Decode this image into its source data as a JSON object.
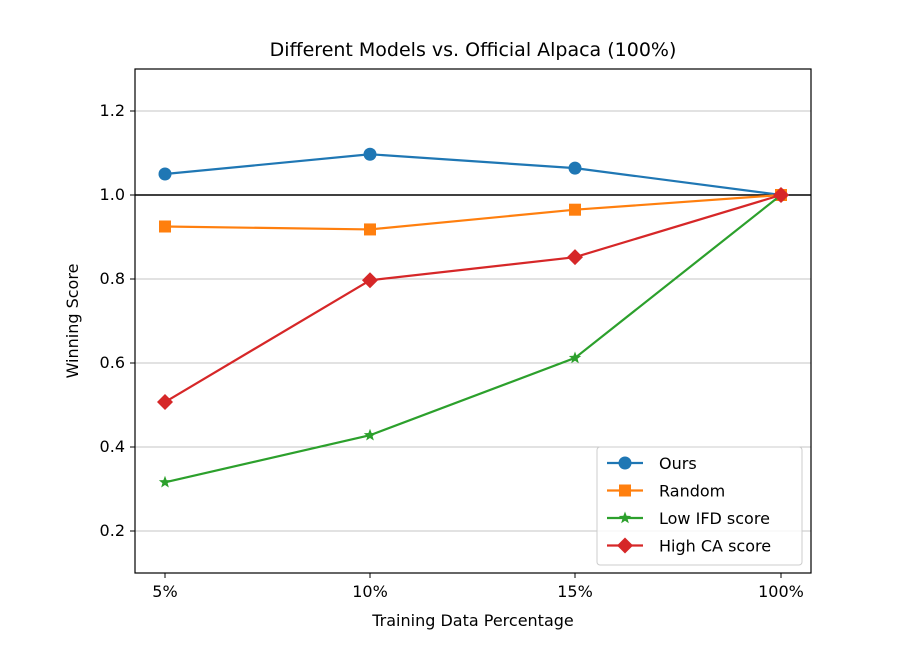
{
  "chart_data": {
    "type": "line",
    "title": "Different Models vs. Official Alpaca (100%)",
    "xlabel": "Training Data Percentage",
    "ylabel": "Winning Score",
    "categories": [
      "5%",
      "10%",
      "15%",
      "100%"
    ],
    "ylim": [
      0.1,
      1.3
    ],
    "yticks": [
      0.2,
      0.4,
      0.6,
      0.8,
      1.0,
      1.2
    ],
    "ytick_labels": [
      "0.2",
      "0.4",
      "0.6",
      "0.8",
      "1.0",
      "1.2"
    ],
    "reference_line": 1.0,
    "grid": "horizontal",
    "legend_position": "lower-right",
    "series": [
      {
        "name": "Ours",
        "values": [
          1.05,
          1.097,
          1.064,
          1.0
        ],
        "color": "#1f77b4",
        "marker": "circle"
      },
      {
        "name": "Random",
        "values": [
          0.925,
          0.918,
          0.965,
          1.0
        ],
        "color": "#ff7f0e",
        "marker": "square"
      },
      {
        "name": "Low IFD score",
        "values": [
          0.316,
          0.428,
          0.612,
          1.0
        ],
        "color": "#2ca02c",
        "marker": "star"
      },
      {
        "name": "High CA score",
        "values": [
          0.507,
          0.797,
          0.852,
          1.0
        ],
        "color": "#d62728",
        "marker": "diamond"
      }
    ]
  }
}
